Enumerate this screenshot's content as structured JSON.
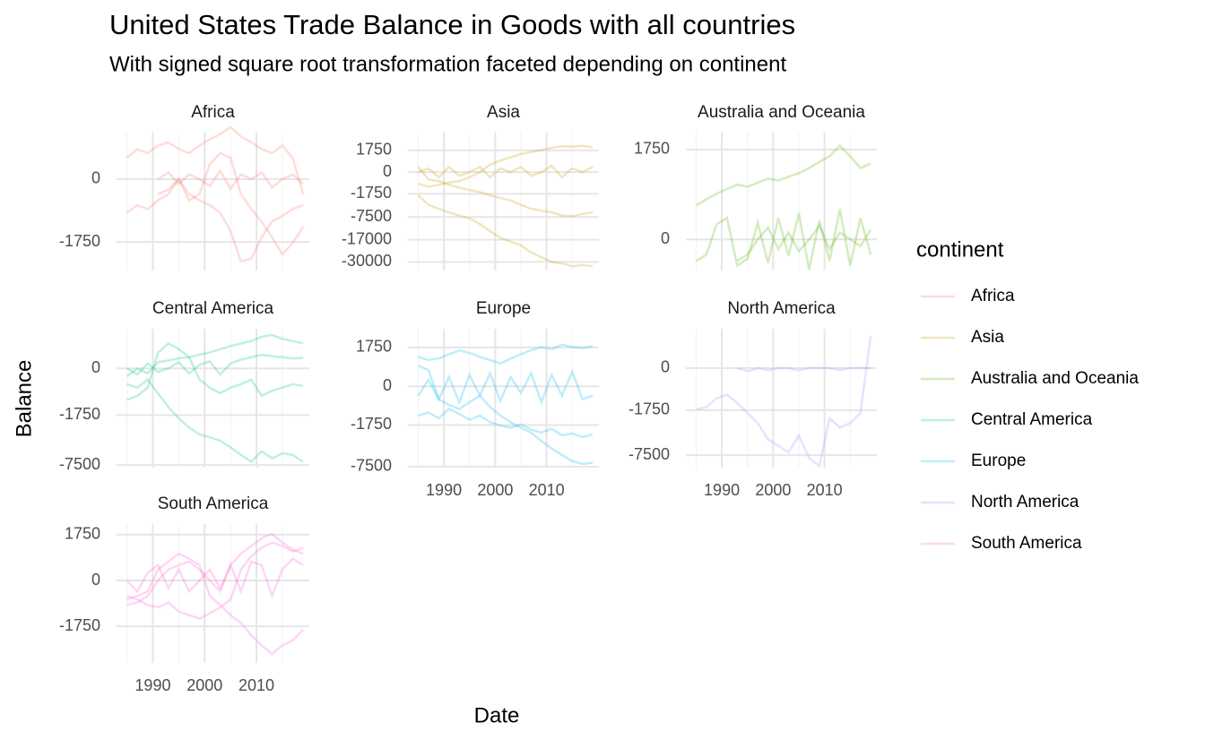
{
  "chart_data": {
    "type": "line",
    "scale": "signed-sqrt",
    "title": "United States Trade Balance in Goods with all countries",
    "subtitle": "With signed square root transformation faceted depending on continent",
    "xlabel": "Date",
    "ylabel": "Balance",
    "legend_title": "continent",
    "grid": true,
    "opacity": 0.25,
    "x": [
      1985,
      1987,
      1989,
      1991,
      1993,
      1995,
      1997,
      1999,
      2001,
      2003,
      2005,
      2007,
      2009,
      2011,
      2013,
      2015,
      2017,
      2019
    ],
    "xlim": [
      1983,
      2020.2
    ],
    "xticks": [
      1990,
      2000,
      2010
    ],
    "xminor": [
      1985,
      1995,
      2005,
      2015
    ],
    "facets": [
      {
        "title": "Africa",
        "color": "#F8766D",
        "ylim": [
          -3700,
          960
        ],
        "yticks": [
          -1750,
          0
        ],
        "series": [
          {
            "values": [
              -500,
              -300,
              -400,
              -200,
              -100,
              0,
              -200,
              -100,
              100,
              300,
              200,
              -100,
              -400,
              -800,
              -1500,
              -2500,
              -1800,
              -1000
            ]
          },
          {
            "values": [
              200,
              400,
              300,
              500,
              600,
              400,
              300,
              500,
              700,
              900,
              1200,
              800,
              600,
              400,
              300,
              500,
              200,
              -100
            ]
          },
          {
            "values": [
              null,
              null,
              null,
              -100,
              -50,
              0,
              -100,
              -200,
              -300,
              -500,
              -1200,
              -3000,
              -2800,
              -1500,
              -800,
              -600,
              -400,
              -300
            ]
          },
          {
            "values": [
              null,
              null,
              null,
              0,
              20,
              -10,
              10,
              0,
              -20,
              30,
              -40,
              10,
              0,
              20,
              -30,
              0,
              10,
              -10
            ]
          }
        ]
      },
      {
        "title": "Asia",
        "color": "#C49A00",
        "ylim": [
          -36000,
          5800
        ],
        "yticks": [
          -30000,
          -17000,
          -7500,
          -1750,
          0,
          1750
        ],
        "series": [
          {
            "values": [
              -2000,
              -4000,
              -5000,
              -6000,
              -7000,
              -8000,
              -10000,
              -13000,
              -16000,
              -18000,
              -20000,
              -24000,
              -27000,
              -30000,
              -31000,
              -33000,
              -32000,
              -33000
            ]
          },
          {
            "values": [
              -500,
              -800,
              -600,
              -400,
              -300,
              -100,
              0,
              200,
              500,
              800,
              1200,
              1500,
              1800,
              2200,
              2500,
              2400,
              2600,
              2300
            ]
          },
          {
            "values": [
              100,
              -200,
              -300,
              -600,
              -900,
              -1200,
              -1500,
              -2000,
              -2500,
              -3000,
              -4000,
              -5000,
              -5500,
              -6000,
              -7000,
              -7200,
              -6500,
              -6000
            ]
          },
          {
            "values": [
              0,
              50,
              -100,
              100,
              -50,
              0,
              100,
              -100,
              50,
              0,
              100,
              -50,
              0,
              150,
              -100,
              50,
              0,
              100
            ]
          }
        ]
      },
      {
        "title": "Australia and Oceania",
        "color": "#53B400",
        "ylim": [
          -210,
          2470
        ],
        "yticks": [
          0,
          1750
        ],
        "series": [
          {
            "values": [
              250,
              350,
              450,
              550,
              650,
              600,
              700,
              800,
              750,
              850,
              950,
              1100,
              1300,
              1500,
              1900,
              1500,
              1100,
              1250
            ]
          },
          {
            "values": [
              null,
              null,
              null,
              null,
              -100,
              -50,
              0,
              30,
              -20,
              10,
              -30,
              0,
              40,
              -20,
              10,
              0,
              -10,
              20
            ]
          },
          {
            "values": [
              -100,
              -50,
              50,
              100,
              -150,
              -80,
              60,
              -120,
              100,
              -60,
              150,
              -200,
              80,
              -100,
              200,
              -150,
              100,
              -50
            ]
          }
        ]
      },
      {
        "title": "Central America",
        "color": "#00C094",
        "ylim": [
          -7900,
          1260
        ],
        "yticks": [
          -7500,
          -1750,
          0
        ],
        "series": [
          {
            "values": [
              -200,
              -300,
              -100,
              -500,
              -1200,
              -2000,
              -2800,
              -3500,
              -3800,
              -4200,
              -5000,
              -6000,
              -7000,
              -5500,
              -6500,
              -5800,
              -6000,
              -7000
            ]
          },
          {
            "values": [
              -50,
              0,
              -20,
              30,
              50,
              80,
              100,
              150,
              200,
              300,
              400,
              500,
              600,
              800,
              900,
              700,
              600,
              500
            ]
          },
          {
            "values": [
              0,
              -30,
              20,
              -10,
              0,
              30,
              -20,
              10,
              40,
              -30,
              20,
              60,
              100,
              150,
              120,
              100,
              80,
              90
            ]
          },
          {
            "values": [
              -800,
              -600,
              -300,
              200,
              500,
              300,
              100,
              -100,
              -300,
              -500,
              -300,
              -200,
              -100,
              -600,
              -400,
              -300,
              -200,
              -250
            ]
          }
        ]
      },
      {
        "title": "Europe",
        "color": "#00B6EB",
        "ylim": [
          -7700,
          3850
        ],
        "yticks": [
          -7500,
          -1750,
          0,
          1750
        ],
        "series": [
          {
            "values": [
              500,
              300,
              -200,
              -400,
              -600,
              -300,
              -100,
              -500,
              -1000,
              -1500,
              -2000,
              -2500,
              -3500,
              -4500,
              -5500,
              -6500,
              -7000,
              -6800
            ]
          },
          {
            "values": [
              1000,
              800,
              900,
              1200,
              1500,
              1300,
              1000,
              800,
              600,
              900,
              1200,
              1500,
              1800,
              1600,
              2000,
              1800,
              1700,
              1900
            ]
          },
          {
            "values": [
              -100,
              50,
              -200,
              100,
              -300,
              150,
              -100,
              200,
              -250,
              100,
              -50,
              200,
              -300,
              150,
              -100,
              250,
              -200,
              -100
            ]
          },
          {
            "values": [
              -1000,
              -800,
              -1200,
              -600,
              -900,
              -1300,
              -1000,
              -1500,
              -1800,
              -2000,
              -1700,
              -2200,
              -2500,
              -2100,
              -2800,
              -2600,
              -3000,
              -2700
            ]
          }
        ]
      },
      {
        "title": "North America",
        "color": "#A58AFF",
        "ylim": [
          -9800,
          1530
        ],
        "yticks": [
          -7500,
          -1750,
          0
        ],
        "series": [
          {
            "values": [
              -1700,
              -1500,
              -900,
              -700,
              -1200,
              -2000,
              -3000,
              -5000,
              -6000,
              -7000,
              -4500,
              -8000,
              -9500,
              -2500,
              -3500,
              -3000,
              -2000,
              1000
            ]
          },
          {
            "values": [
              null,
              null,
              null,
              null,
              0,
              -10,
              0,
              -5,
              0,
              0,
              -5,
              0,
              0,
              0,
              -5,
              0,
              0,
              0
            ]
          }
        ]
      },
      {
        "title": "South America",
        "color": "#FB61D7",
        "ylim": [
          -5660,
          2660
        ],
        "yticks": [
          -1750,
          0,
          1750
        ],
        "series": [
          {
            "values": [
              -300,
              -200,
              -100,
              100,
              300,
              600,
              400,
              200,
              -200,
              -500,
              -1000,
              -1500,
              -2500,
              -3500,
              -4500,
              -3500,
              -3000,
              -2000
            ]
          },
          {
            "values": [
              -500,
              -400,
              -200,
              0,
              100,
              200,
              300,
              100,
              0,
              -100,
              200,
              600,
              1000,
              1500,
              1800,
              1200,
              800,
              600
            ]
          },
          {
            "values": [
              0,
              -100,
              50,
              200,
              -50,
              100,
              -100,
              0,
              100,
              -50,
              200,
              -100,
              300,
              200,
              -200,
              100,
              400,
              200
            ]
          },
          {
            "values": [
              -200,
              -300,
              -500,
              -600,
              -400,
              -800,
              -1000,
              -1200,
              -900,
              -600,
              -300,
              100,
              500,
              900,
              1200,
              1000,
              700,
              900
            ]
          }
        ]
      }
    ]
  }
}
